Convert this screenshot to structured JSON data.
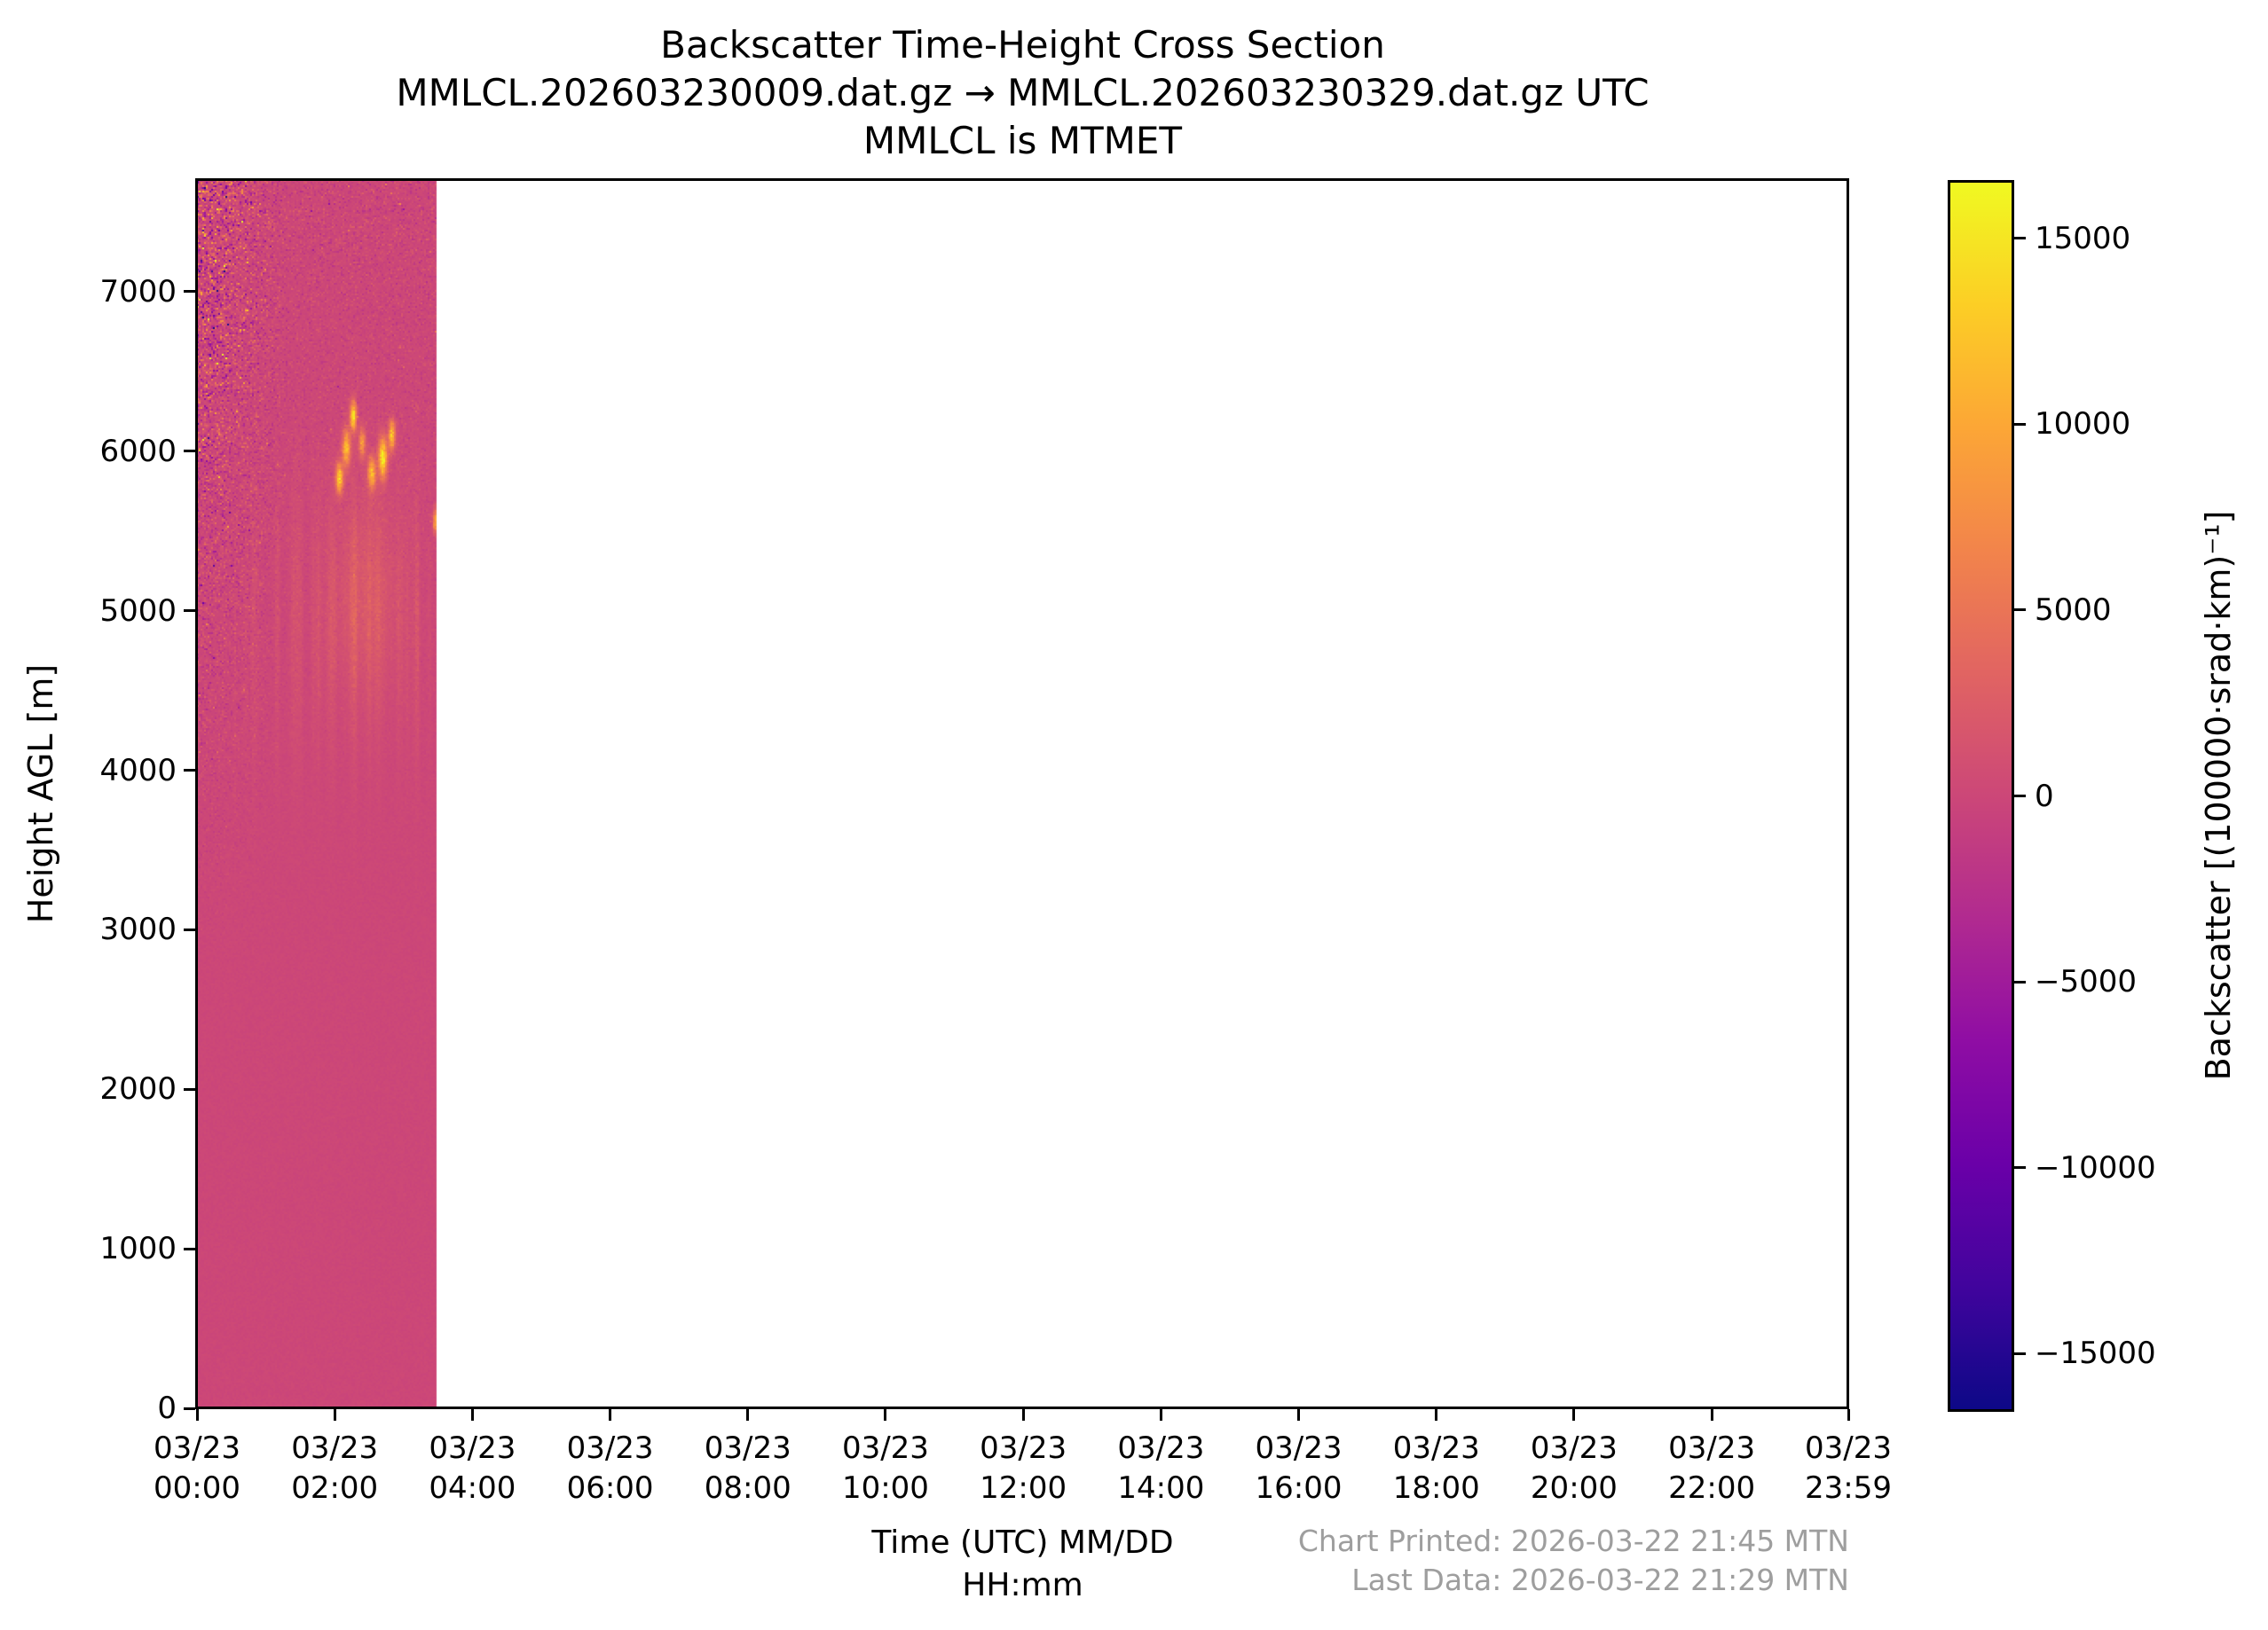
{
  "title": {
    "line1": "Backscatter Time-Height Cross Section",
    "line2": "MMLCL.202603230009.dat.gz → MMLCL.202603230329.dat.gz UTC",
    "line3": "MMLCL is MTMET"
  },
  "axes": {
    "ylabel": "Height AGL [m]",
    "xlabel_line1": "Time (UTC) MM/DD",
    "xlabel_line2": "HH:mm"
  },
  "footer": {
    "printed": "Chart Printed: 2026-03-22 21:45 MTN",
    "last_data": "Last Data: 2026-03-22 21:29 MTN",
    "color": "#9e9e9e"
  },
  "chart_data": {
    "type": "heatmap",
    "title": "Backscatter Time-Height Cross Section",
    "xlabel": "Time (UTC) MM/DD HH:mm",
    "ylabel": "Height AGL [m]",
    "colorbar_label": "Backscatter [(100000·srad·km)⁻¹]",
    "colormap": "plasma",
    "vmin": -16500,
    "vmax": 16500,
    "colorbar_ticks": [
      15000,
      10000,
      5000,
      0,
      -5000,
      -10000,
      -15000
    ],
    "colormap_stops": [
      {
        "pos": 0.0,
        "color": "#0d0887"
      },
      {
        "pos": 0.1,
        "color": "#41049d"
      },
      {
        "pos": 0.2,
        "color": "#6a00a8"
      },
      {
        "pos": 0.3,
        "color": "#8f0da4"
      },
      {
        "pos": 0.4,
        "color": "#b12a90"
      },
      {
        "pos": 0.5,
        "color": "#cc4778"
      },
      {
        "pos": 0.6,
        "color": "#e16462"
      },
      {
        "pos": 0.7,
        "color": "#f2844b"
      },
      {
        "pos": 0.8,
        "color": "#fca636"
      },
      {
        "pos": 0.9,
        "color": "#fcce25"
      },
      {
        "pos": 1.0,
        "color": "#f0f921"
      }
    ],
    "ylim": [
      0,
      7700
    ],
    "y_ticks": [
      0,
      1000,
      2000,
      3000,
      4000,
      5000,
      6000,
      7000
    ],
    "xlim_hours": [
      0,
      23.983
    ],
    "x_ticks": [
      {
        "hour": 0,
        "date": "03/23",
        "time": "00:00"
      },
      {
        "hour": 2,
        "date": "03/23",
        "time": "02:00"
      },
      {
        "hour": 4,
        "date": "03/23",
        "time": "04:00"
      },
      {
        "hour": 6,
        "date": "03/23",
        "time": "06:00"
      },
      {
        "hour": 8,
        "date": "03/23",
        "time": "08:00"
      },
      {
        "hour": 10,
        "date": "03/23",
        "time": "10:00"
      },
      {
        "hour": 12,
        "date": "03/23",
        "time": "12:00"
      },
      {
        "hour": 14,
        "date": "03/23",
        "time": "14:00"
      },
      {
        "hour": 16,
        "date": "03/23",
        "time": "16:00"
      },
      {
        "hour": 18,
        "date": "03/23",
        "time": "18:00"
      },
      {
        "hour": 20,
        "date": "03/23",
        "time": "20:00"
      },
      {
        "hour": 22,
        "date": "03/23",
        "time": "22:00"
      },
      {
        "hour": 23.983,
        "date": "03/23",
        "time": "23:59"
      }
    ],
    "data_coverage": {
      "start": "03/23 00:00 UTC",
      "end": "03/23 03:29 UTC",
      "base_value": 0
    },
    "texture_model": {
      "seed": 42,
      "end_hour": 3.49,
      "base_noise": {
        "h_floor_m": 2600,
        "h_span_m": 5100,
        "h_exp": 1.6,
        "t_fade_h": 1.35,
        "amp_main": 5500,
        "amp_left": 2200,
        "base_mix": 0.3,
        "spike_prob": 0.012,
        "spike_amp": 2.5
      },
      "streaks": {
        "center_h_m": 4900,
        "sigma_h_m": 850,
        "amp": 2800,
        "density": 0.38,
        "t_start_h": 0.55
      },
      "cloud_blobs": [
        [
          2.07,
          5830,
          0.05,
          90,
          14000
        ],
        [
          2.17,
          6020,
          0.055,
          110,
          12000
        ],
        [
          2.27,
          6220,
          0.045,
          90,
          14500
        ],
        [
          2.4,
          6050,
          0.05,
          90,
          8000
        ],
        [
          2.54,
          5860,
          0.055,
          100,
          11000
        ],
        [
          2.7,
          5960,
          0.06,
          120,
          15000
        ],
        [
          2.83,
          6100,
          0.045,
          90,
          12500
        ],
        [
          3.46,
          5560,
          0.03,
          70,
          10000
        ],
        [
          2.45,
          5100,
          0.5,
          600,
          1800
        ]
      ],
      "jitter": 300
    }
  }
}
